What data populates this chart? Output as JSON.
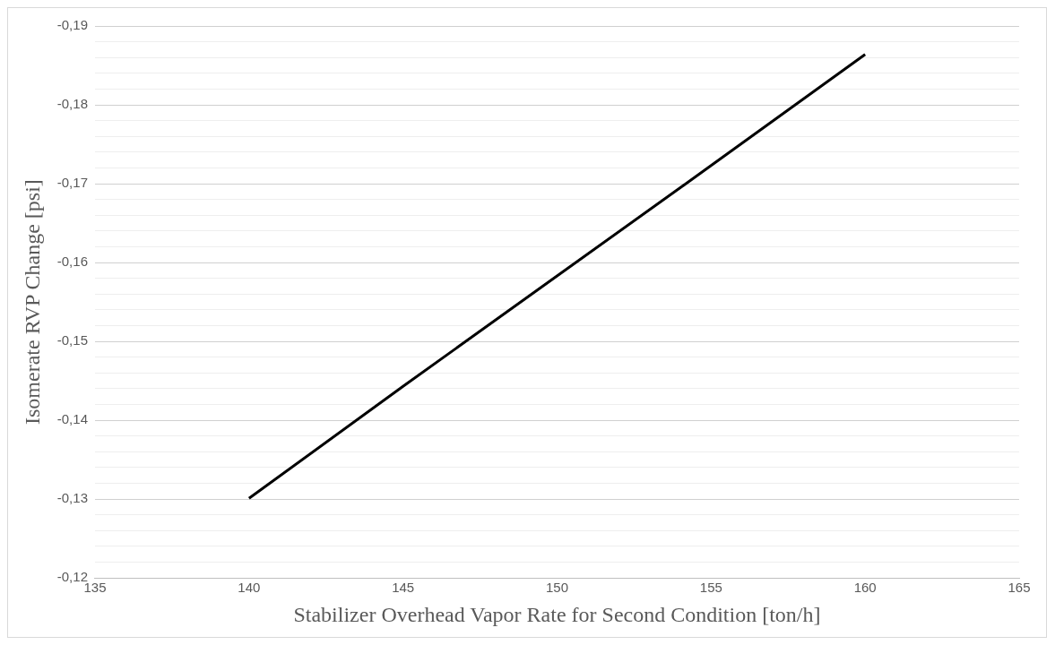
{
  "chart_data": {
    "type": "line",
    "xlabel": "Stabilizer Overhead Vapor Rate for Second Condition [ton/h]",
    "ylabel": "Isomerate RVP Change [psi]",
    "x": [
      140,
      145,
      150,
      155,
      160
    ],
    "series": [
      {
        "color": "#000000",
        "values": [
          -0.1301,
          -0.1443,
          -0.1583,
          -0.1723,
          -0.1864
        ]
      }
    ],
    "xlim": [
      135,
      165
    ],
    "xticks": [
      135,
      140,
      145,
      150,
      155,
      160,
      165
    ],
    "ylim": [
      -0.12,
      -0.19
    ],
    "yticks": [
      {
        "value": -0.12,
        "label": "-0,12"
      },
      {
        "value": -0.122,
        "label": null
      },
      {
        "value": -0.124,
        "label": null
      },
      {
        "value": -0.126,
        "label": null
      },
      {
        "value": -0.128,
        "label": null
      },
      {
        "value": -0.13,
        "label": "-0,13"
      },
      {
        "value": -0.132,
        "label": null
      },
      {
        "value": -0.134,
        "label": null
      },
      {
        "value": -0.136,
        "label": null
      },
      {
        "value": -0.138,
        "label": null
      },
      {
        "value": -0.14,
        "label": "-0,14"
      },
      {
        "value": -0.142,
        "label": null
      },
      {
        "value": -0.144,
        "label": null
      },
      {
        "value": -0.146,
        "label": null
      },
      {
        "value": -0.148,
        "label": null
      },
      {
        "value": -0.15,
        "label": "-0,15"
      },
      {
        "value": -0.152,
        "label": null
      },
      {
        "value": -0.154,
        "label": null
      },
      {
        "value": -0.156,
        "label": null
      },
      {
        "value": -0.158,
        "label": null
      },
      {
        "value": -0.16,
        "label": "-0,16"
      },
      {
        "value": -0.162,
        "label": null
      },
      {
        "value": -0.164,
        "label": null
      },
      {
        "value": -0.166,
        "label": null
      },
      {
        "value": -0.168,
        "label": null
      },
      {
        "value": -0.17,
        "label": "-0,17"
      },
      {
        "value": -0.172,
        "label": null
      },
      {
        "value": -0.174,
        "label": null
      },
      {
        "value": -0.176,
        "label": null
      },
      {
        "value": -0.178,
        "label": null
      },
      {
        "value": -0.18,
        "label": "-0,18"
      },
      {
        "value": -0.182,
        "label": null
      },
      {
        "value": -0.184,
        "label": null
      },
      {
        "value": -0.186,
        "label": null
      },
      {
        "value": -0.188,
        "label": null
      },
      {
        "value": -0.19,
        "label": "-0,19"
      }
    ],
    "grid": "y",
    "marker": "none",
    "line_style": "solid"
  }
}
